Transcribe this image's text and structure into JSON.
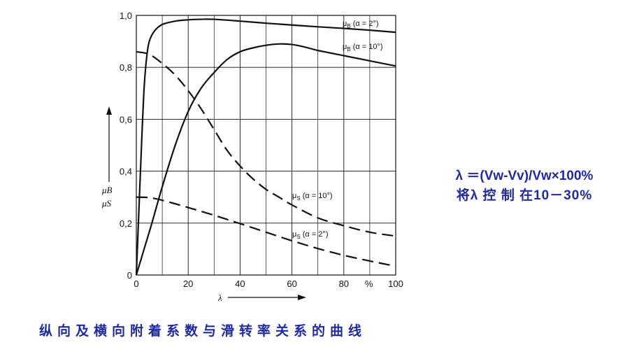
{
  "chart_data": {
    "type": "line",
    "xlabel": "λ",
    "x_unit": "%",
    "ylabel": [
      "μB",
      "μS"
    ],
    "xlim": [
      0,
      100
    ],
    "ylim": [
      0,
      1.0
    ],
    "x_ticks": [
      0,
      20,
      40,
      60,
      80,
      100
    ],
    "x_tick_labels": [
      "0",
      "20",
      "40",
      "60",
      "80",
      "100"
    ],
    "y_ticks": [
      0,
      0.2,
      0.4,
      0.6,
      0.8,
      1.0
    ],
    "y_tick_labels": [
      "0",
      "0,2",
      "0,4",
      "0,6",
      "0,8",
      "1,0"
    ],
    "grid": true,
    "series": [
      {
        "name": "μB (α = 2°)",
        "style": "solid",
        "points": [
          [
            0,
            0
          ],
          [
            2,
            0.5
          ],
          [
            3,
            0.72
          ],
          [
            4,
            0.84
          ],
          [
            5,
            0.9
          ],
          [
            7,
            0.94
          ],
          [
            10,
            0.965
          ],
          [
            15,
            0.978
          ],
          [
            20,
            0.983
          ],
          [
            25,
            0.985
          ],
          [
            30,
            0.985
          ],
          [
            40,
            0.978
          ],
          [
            50,
            0.97
          ],
          [
            60,
            0.963
          ],
          [
            70,
            0.956
          ],
          [
            80,
            0.95
          ],
          [
            90,
            0.943
          ],
          [
            100,
            0.935
          ]
        ]
      },
      {
        "name": "μB (α = 10°)",
        "style": "solid",
        "points": [
          [
            0,
            0
          ],
          [
            3,
            0.1
          ],
          [
            6,
            0.2
          ],
          [
            10,
            0.34
          ],
          [
            15,
            0.5
          ],
          [
            20,
            0.63
          ],
          [
            25,
            0.72
          ],
          [
            30,
            0.78
          ],
          [
            35,
            0.83
          ],
          [
            40,
            0.86
          ],
          [
            45,
            0.875
          ],
          [
            50,
            0.885
          ],
          [
            55,
            0.89
          ],
          [
            60,
            0.888
          ],
          [
            65,
            0.878
          ],
          [
            70,
            0.865
          ],
          [
            80,
            0.845
          ],
          [
            90,
            0.825
          ],
          [
            100,
            0.805
          ]
        ]
      },
      {
        "name": "μS (α = 10°)",
        "style": "dashed",
        "points": [
          [
            0,
            0.86
          ],
          [
            5,
            0.85
          ],
          [
            10,
            0.815
          ],
          [
            15,
            0.77
          ],
          [
            20,
            0.71
          ],
          [
            25,
            0.64
          ],
          [
            30,
            0.56
          ],
          [
            35,
            0.48
          ],
          [
            40,
            0.42
          ],
          [
            45,
            0.37
          ],
          [
            50,
            0.33
          ],
          [
            55,
            0.3
          ],
          [
            60,
            0.27
          ],
          [
            70,
            0.22
          ],
          [
            80,
            0.19
          ],
          [
            90,
            0.165
          ],
          [
            100,
            0.15
          ]
        ]
      },
      {
        "name": "μS (α = 2°)",
        "style": "dashed",
        "points": [
          [
            0,
            0.3
          ],
          [
            5,
            0.298
          ],
          [
            10,
            0.288
          ],
          [
            20,
            0.26
          ],
          [
            30,
            0.23
          ],
          [
            40,
            0.198
          ],
          [
            50,
            0.165
          ],
          [
            60,
            0.132
          ],
          [
            70,
            0.102
          ],
          [
            80,
            0.076
          ],
          [
            90,
            0.054
          ],
          [
            100,
            0.034
          ]
        ]
      }
    ],
    "curve_labels": [
      {
        "series": 0,
        "parts": [
          "μ",
          "B",
          " (α = 2°)"
        ]
      },
      {
        "series": 1,
        "parts": [
          "μ",
          "B",
          " (α = 10°)"
        ]
      },
      {
        "series": 2,
        "parts": [
          "μ",
          "S",
          " (α = 10°)"
        ]
      },
      {
        "series": 3,
        "parts": [
          "μ",
          "S",
          " (α = 2°)"
        ]
      }
    ]
  },
  "formula_line1": "λ ＝(Vw-Vv)/Vw×100%",
  "formula_line2": "将λ 控 制 在10－30%",
  "caption": "纵向及横向附着系数与滑转率关系的曲线"
}
